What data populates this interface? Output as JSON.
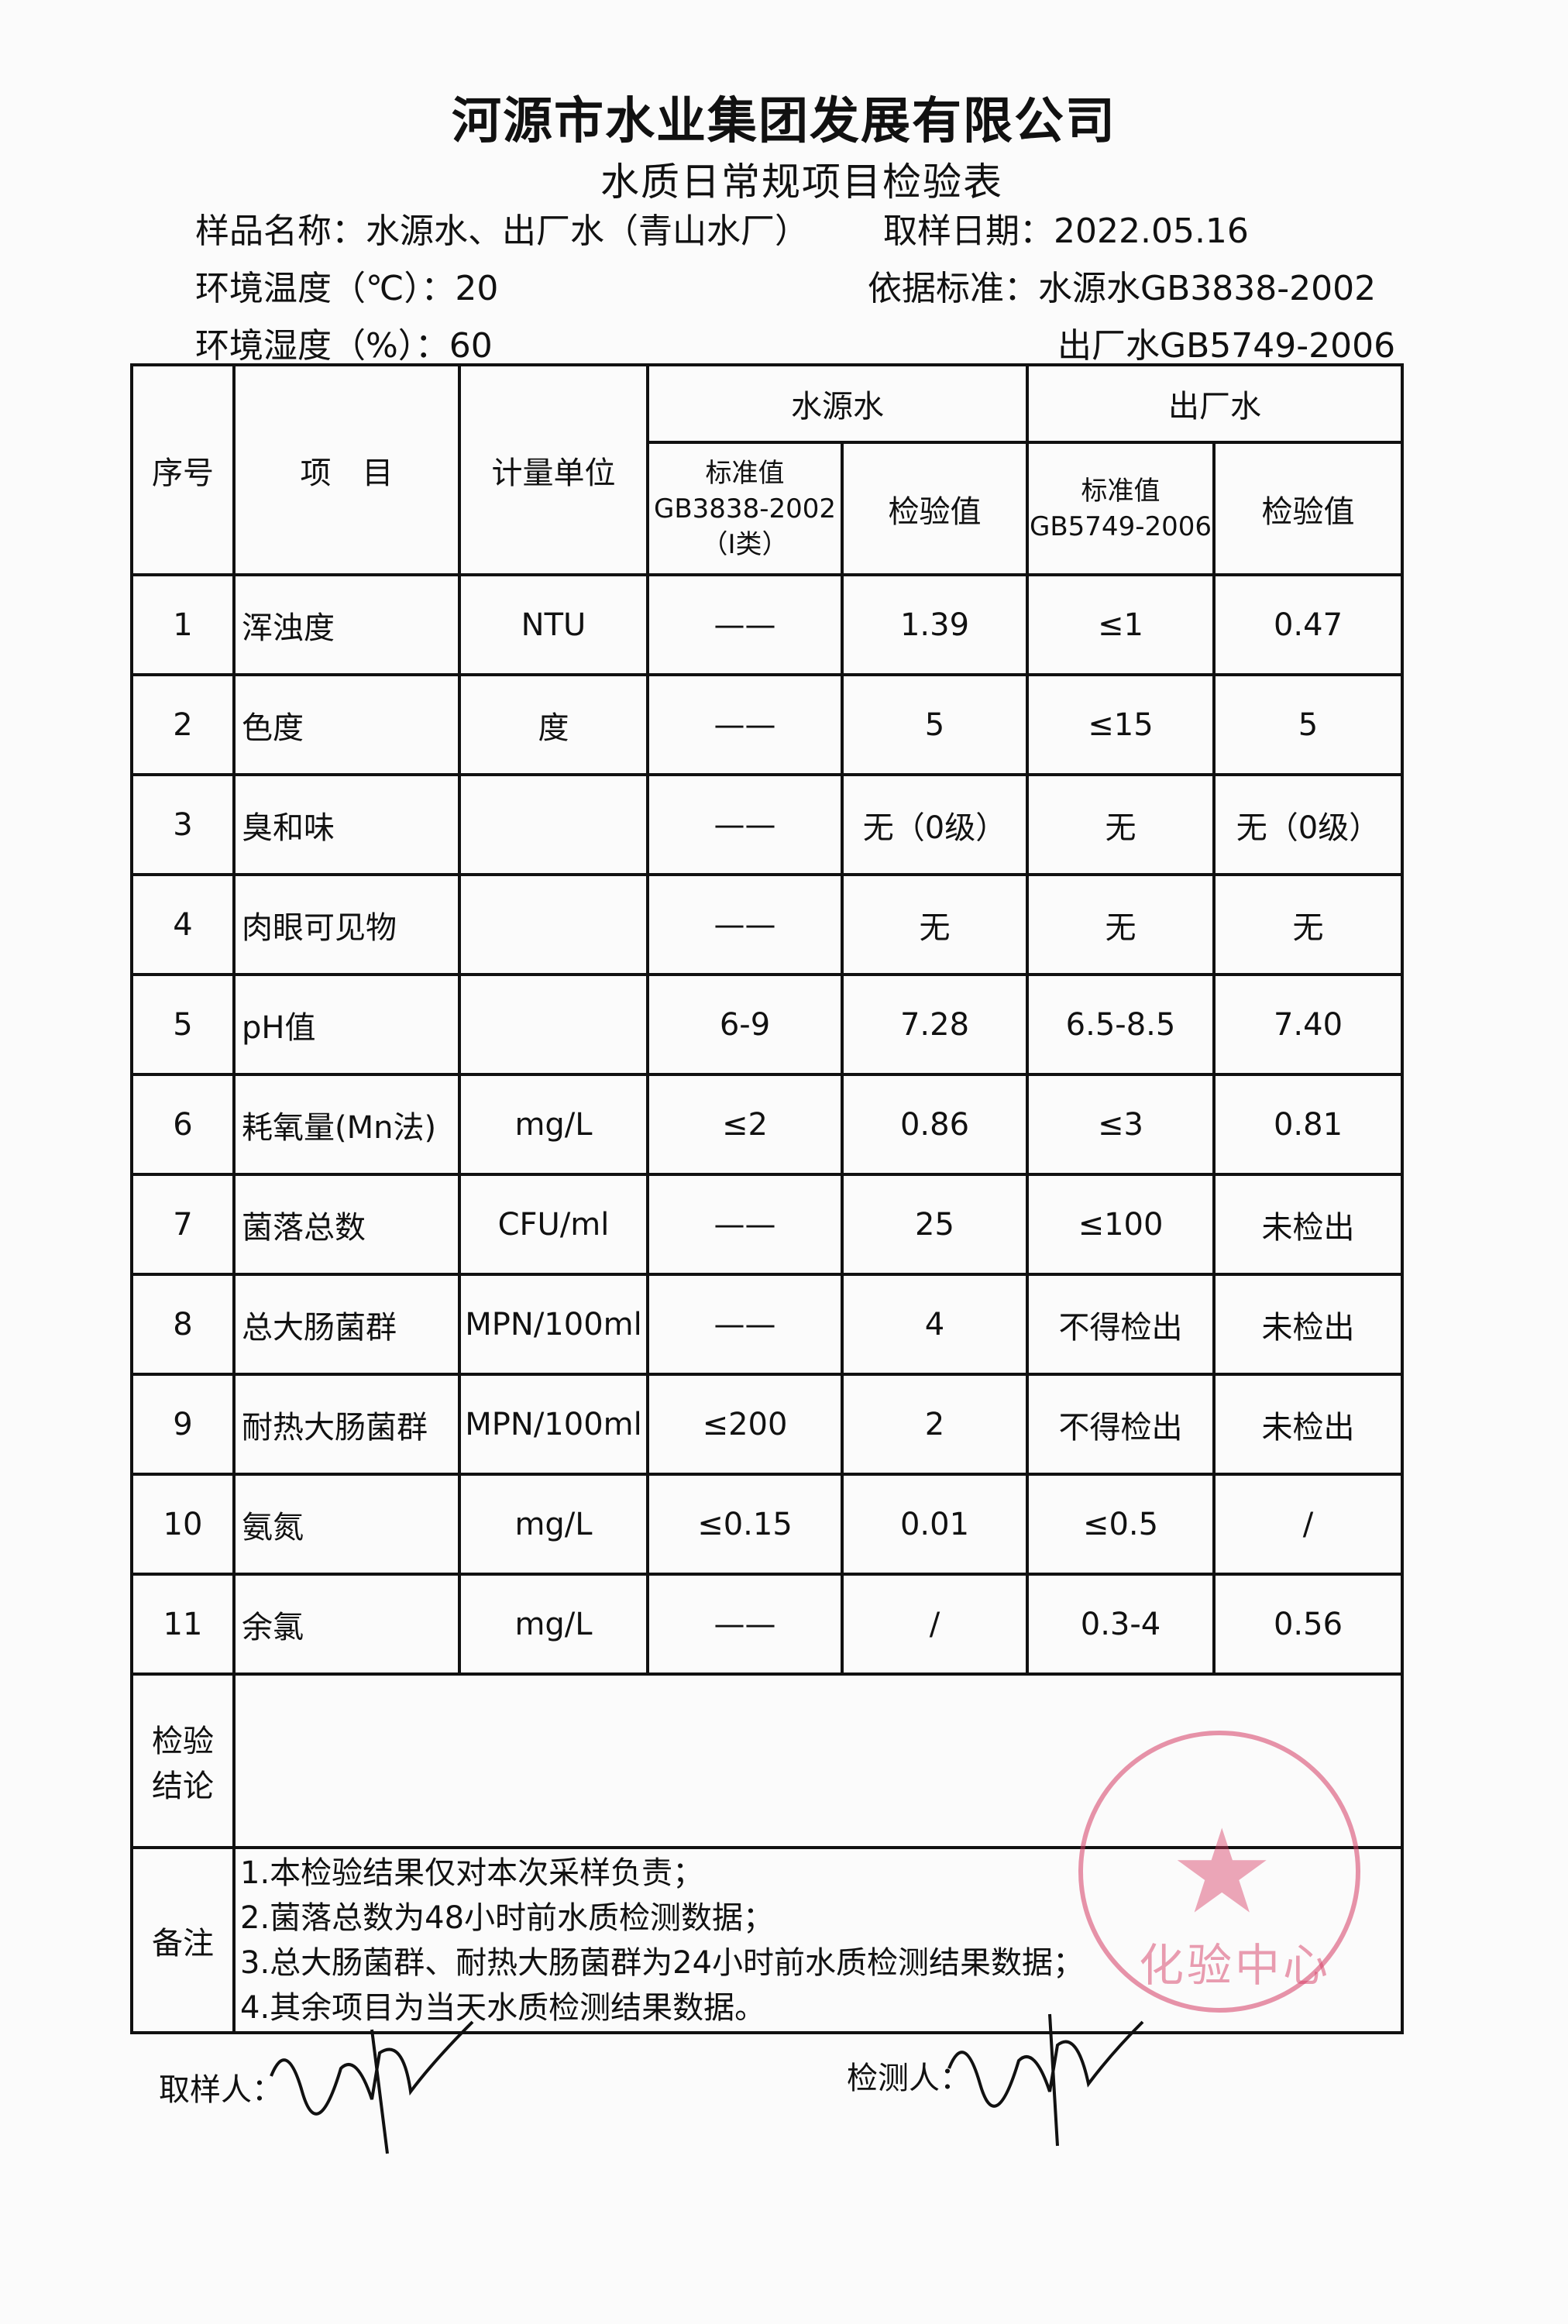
{
  "header": {
    "company": "河源市水业集团发展有限公司",
    "form_title": "水质日常规项目检验表",
    "sample_label": "样品名称：水源水、出厂水（青山水厂）",
    "sample_date_label": "取样日期：2022.05.16",
    "temperature": "环境温度（℃）：20",
    "humidity": "环境湿度（%）：60",
    "standard_source": "依据标准：水源水GB3838-2002",
    "standard_output": "出厂水GB5749-2006"
  },
  "table": {
    "headers": {
      "no": "序号",
      "item": "项　目",
      "unit": "计量单位",
      "source_water": "水源水",
      "output_water": "出厂水",
      "std_source_1": "标准值",
      "std_source_2": "GB3838-2002",
      "std_source_3": "（Ⅰ类）",
      "test_value": "检验值",
      "std_output_1": "标准值",
      "std_output_2": "GB5749-2006"
    },
    "rows": [
      {
        "no": "1",
        "item": "浑浊度",
        "unit": "NTU",
        "src_std": "——",
        "src_val": "1.39",
        "out_std": "≤1",
        "out_val": "0.47"
      },
      {
        "no": "2",
        "item": "色度",
        "unit": "度",
        "src_std": "——",
        "src_val": "5",
        "out_std": "≤15",
        "out_val": "5"
      },
      {
        "no": "3",
        "item": "臭和味",
        "unit": "",
        "src_std": "——",
        "src_val": "无（0级）",
        "out_std": "无",
        "out_val": "无（0级）"
      },
      {
        "no": "4",
        "item": "肉眼可见物",
        "unit": "",
        "src_std": "——",
        "src_val": "无",
        "out_std": "无",
        "out_val": "无"
      },
      {
        "no": "5",
        "item": "pH值",
        "unit": "",
        "src_std": "6-9",
        "src_val": "7.28",
        "out_std": "6.5-8.5",
        "out_val": "7.40"
      },
      {
        "no": "6",
        "item": "耗氧量(Mn法)",
        "unit": "mg/L",
        "src_std": "≤2",
        "src_val": "0.86",
        "out_std": "≤3",
        "out_val": "0.81"
      },
      {
        "no": "7",
        "item": "菌落总数",
        "unit": "CFU/ml",
        "src_std": "——",
        "src_val": "25",
        "out_std": "≤100",
        "out_val": "未检出"
      },
      {
        "no": "8",
        "item": "总大肠菌群",
        "unit": "MPN/100ml",
        "src_std": "——",
        "src_val": "4",
        "out_std": "不得检出",
        "out_val": "未检出"
      },
      {
        "no": "9",
        "item": "耐热大肠菌群",
        "unit": "MPN/100ml",
        "src_std": "≤200",
        "src_val": "2",
        "out_std": "不得检出",
        "out_val": "未检出"
      },
      {
        "no": "10",
        "item": "氨氮",
        "unit": "mg/L",
        "src_std": "≤0.15",
        "src_val": "0.01",
        "out_std": "≤0.5",
        "out_val": "/"
      },
      {
        "no": "11",
        "item": "余氯",
        "unit": "mg/L",
        "src_std": "——",
        "src_val": "/",
        "out_std": "0.3-4",
        "out_val": "0.56"
      }
    ],
    "conclusion_label_1": "检验",
    "conclusion_label_2": "结论",
    "notes_label": "备注",
    "notes": [
      "1.本检验结果仅对本次采样负责；",
      "2.菌落总数为48小时前水质检测数据；",
      "3.总大肠菌群、耐热大肠菌群为24小时前水质检测结果数据；",
      "4.其余项目为当天水质检测结果数据。"
    ]
  },
  "stamp": {
    "text": "河源市水业集团发展有限公司 化验中心",
    "color": "#d63c64"
  },
  "signatures": {
    "sampler_label": "取样人：",
    "tester_label": "检测人："
  }
}
